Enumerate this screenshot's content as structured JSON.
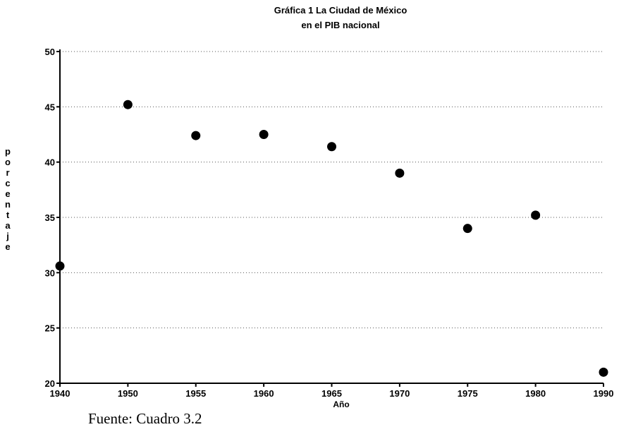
{
  "chart_data": {
    "type": "scatter",
    "title_lines": [
      "Gráfica  1  La Ciudad de México",
      "en el PIB nacional"
    ],
    "xlabel": "Año",
    "ylabel": "porcentaje",
    "x_ticks": [
      "1940",
      "1950",
      "1955",
      "1960",
      "1965",
      "1970",
      "1975",
      "1980",
      "1990"
    ],
    "y_ticks": [
      "20",
      "25",
      "30",
      "35",
      "40",
      "45",
      "50"
    ],
    "ylim": [
      20,
      50
    ],
    "grid": true,
    "points": [
      {
        "x": "1940",
        "y": 30.6
      },
      {
        "x": "1950",
        "y": 45.2
      },
      {
        "x": "1955",
        "y": 42.4
      },
      {
        "x": "1960",
        "y": 42.5
      },
      {
        "x": "1965",
        "y": 41.4
      },
      {
        "x": "1970",
        "y": 39.0
      },
      {
        "x": "1975",
        "y": 34.0
      },
      {
        "x": "1980",
        "y": 35.2
      },
      {
        "x": "1990",
        "y": 21.0
      }
    ],
    "marker_color": "#000000"
  },
  "source_note": "Fuente: Cuadro 3.2"
}
